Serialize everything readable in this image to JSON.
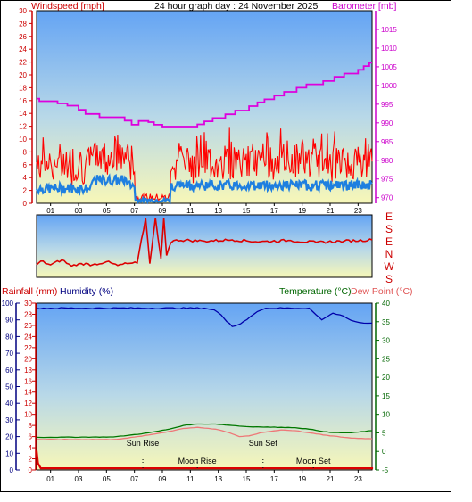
{
  "header": {
    "title": "24 hour graph day : 24 November 2025",
    "wind_label": "Windspeed [mph]",
    "baro_label": "Barometer [mb]",
    "rain_label": "Rainfall (mm)",
    "hum_label": "Humidity (%)",
    "temp_label": "Temperature (°C)",
    "dew_label": "Dew Point (°C)"
  },
  "colors": {
    "wind_gust": "#ff0000",
    "wind_avg": "#1e7fe0",
    "barometer": "#dd00dd",
    "direction": "#dd0000",
    "humidity": "#0000aa",
    "temperature": "#007700",
    "dew_point": "#ee7777",
    "rain": "#dd0000"
  },
  "chart_data": [
    {
      "type": "line",
      "x_ticks": [
        "01",
        "03",
        "05",
        "07",
        "09",
        "11",
        "13",
        "15",
        "17",
        "19",
        "21",
        "23"
      ],
      "xlim": [
        0,
        24
      ],
      "y_left": {
        "ticks": [
          "0",
          "2",
          "4",
          "6",
          "8",
          "10",
          "12",
          "14",
          "16",
          "18",
          "20",
          "22",
          "24",
          "26",
          "28",
          "30"
        ],
        "ylim": [
          0,
          30
        ]
      },
      "y_right": {
        "ticks": [
          "970",
          "975",
          "980",
          "985",
          "990",
          "995",
          "1000",
          "1005",
          "1010",
          "1015"
        ],
        "ylim": [
          968.5,
          1020
        ]
      },
      "series": [
        {
          "key": "barometer",
          "axis": "right",
          "points": [
            [
              0,
              996.5
            ],
            [
              0.2,
              995.8
            ],
            [
              1.5,
              995.2
            ],
            [
              2.2,
              994.6
            ],
            [
              3.0,
              993.5
            ],
            [
              3.5,
              992.4
            ],
            [
              4.5,
              991.5
            ],
            [
              6.3,
              990.6
            ],
            [
              6.8,
              989.5
            ],
            [
              7.3,
              990.5
            ],
            [
              8.0,
              990.2
            ],
            [
              8.4,
              989.5
            ],
            [
              9.0,
              989.0
            ],
            [
              11.5,
              989.6
            ],
            [
              12.0,
              990.4
            ],
            [
              12.6,
              991.3
            ],
            [
              13.5,
              992.3
            ],
            [
              14.2,
              993.3
            ],
            [
              15.2,
              994.5
            ],
            [
              15.8,
              995.5
            ],
            [
              16.3,
              996.3
            ],
            [
              17.0,
              997.3
            ],
            [
              17.7,
              998.3
            ],
            [
              18.6,
              999.4
            ],
            [
              19.3,
              1000.3
            ],
            [
              20.5,
              1001.2
            ],
            [
              21.3,
              1002.3
            ],
            [
              22.0,
              1003.2
            ],
            [
              23.0,
              1004.2
            ],
            [
              23.4,
              1005.2
            ],
            [
              23.8,
              1006.1
            ]
          ]
        },
        {
          "key": "wind_gust",
          "axis": "left"
        },
        {
          "key": "wind_avg",
          "axis": "left"
        }
      ]
    },
    {
      "type": "line",
      "key": "direction",
      "y_ticks": [
        "E",
        "S",
        "E",
        "N",
        "W",
        "S"
      ],
      "xlim": [
        0,
        24
      ],
      "points": [
        [
          0,
          0.2
        ],
        [
          0.3,
          0.26
        ],
        [
          1,
          0.2
        ],
        [
          1.8,
          0.28
        ],
        [
          2.5,
          0.18
        ],
        [
          3.2,
          0.22
        ],
        [
          4,
          0.2
        ],
        [
          5,
          0.25
        ],
        [
          5.8,
          0.19
        ],
        [
          6.5,
          0.22
        ],
        [
          7.2,
          0.23
        ],
        [
          7.8,
          0.95
        ],
        [
          8.1,
          0.22
        ],
        [
          8.5,
          0.95
        ],
        [
          8.9,
          0.3
        ],
        [
          9.1,
          0.95
        ],
        [
          9.3,
          0.35
        ],
        [
          9.6,
          0.55
        ],
        [
          10,
          0.6
        ],
        [
          12,
          0.58
        ],
        [
          14,
          0.6
        ],
        [
          16,
          0.57
        ],
        [
          18,
          0.59
        ],
        [
          20,
          0.56
        ],
        [
          22,
          0.58
        ],
        [
          24,
          0.6
        ]
      ]
    },
    {
      "type": "line",
      "x_ticks": [
        "01",
        "03",
        "05",
        "07",
        "09",
        "11",
        "13",
        "15",
        "17",
        "19",
        "21",
        "23"
      ],
      "xlim": [
        0,
        24
      ],
      "y_rain": {
        "ticks": [
          "0",
          "2",
          "4",
          "6",
          "8",
          "10",
          "12",
          "14",
          "16",
          "18",
          "20",
          "22",
          "24",
          "26",
          "28",
          "30"
        ],
        "ylim": [
          0,
          30
        ]
      },
      "y_hum": {
        "ticks": [
          "0",
          "10",
          "20",
          "30",
          "40",
          "50",
          "60",
          "70",
          "80",
          "90",
          "100"
        ],
        "ylim": [
          0,
          100
        ]
      },
      "y_temp": {
        "ticks": [
          "-5",
          "0",
          "5",
          "10",
          "15",
          "20",
          "25",
          "30",
          "35",
          "40"
        ],
        "ylim": [
          -5,
          40
        ]
      },
      "annotations": [
        {
          "text": "Sun Rise",
          "x": 7.6
        },
        {
          "text": "Moon Rise",
          "x": 11.5
        },
        {
          "text": "Sun Set",
          "x": 16.2
        },
        {
          "text": "Moon Set",
          "x": 19.8
        }
      ],
      "series": [
        {
          "key": "humidity",
          "axis": "hum",
          "points": [
            [
              0,
              97
            ],
            [
              12,
              97
            ],
            [
              12.7,
              96
            ],
            [
              13.2,
              93
            ],
            [
              13.6,
              89
            ],
            [
              14,
              86
            ],
            [
              14.4,
              87
            ],
            [
              14.8,
              89
            ],
            [
              15.3,
              92
            ],
            [
              15.8,
              95
            ],
            [
              16.4,
              97
            ],
            [
              19.5,
              97
            ],
            [
              20,
              93
            ],
            [
              20.4,
              90
            ],
            [
              20.8,
              92
            ],
            [
              21.2,
              94
            ],
            [
              21.7,
              93
            ],
            [
              22.2,
              91
            ],
            [
              22.8,
              89
            ],
            [
              23.4,
              88
            ],
            [
              24,
              88
            ]
          ]
        },
        {
          "key": "temperature",
          "axis": "temp",
          "points": [
            [
              0,
              3.8
            ],
            [
              5.5,
              3.9
            ],
            [
              6.5,
              4.3
            ],
            [
              8,
              5.0
            ],
            [
              9.5,
              6.0
            ],
            [
              10.5,
              7.0
            ],
            [
              11.5,
              7.4
            ],
            [
              12.8,
              7.4
            ],
            [
              14,
              7.0
            ],
            [
              15,
              6.7
            ],
            [
              16,
              6.6
            ],
            [
              17.5,
              6.5
            ],
            [
              18.5,
              6.4
            ],
            [
              19.5,
              6.0
            ],
            [
              21,
              5.1
            ],
            [
              22.5,
              5.0
            ],
            [
              24,
              5.6
            ]
          ]
        },
        {
          "key": "dew_point",
          "axis": "temp",
          "points": [
            [
              0,
              3.2
            ],
            [
              5.5,
              3.2
            ],
            [
              6.5,
              3.6
            ],
            [
              8,
              4.4
            ],
            [
              9.5,
              5.4
            ],
            [
              10.5,
              6.2
            ],
            [
              11.5,
              6.5
            ],
            [
              12.8,
              6.0
            ],
            [
              13.8,
              5.0
            ],
            [
              14.5,
              4.0
            ],
            [
              15.2,
              4.2
            ],
            [
              16,
              5.0
            ],
            [
              17.5,
              5.8
            ],
            [
              18.5,
              5.6
            ],
            [
              19.5,
              5.0
            ],
            [
              21,
              4.2
            ],
            [
              22.5,
              3.6
            ],
            [
              24,
              3.4
            ]
          ]
        },
        {
          "key": "rain",
          "axis": "rain",
          "points": [
            [
              0,
              3.5
            ],
            [
              0.1,
              1.2
            ],
            [
              0.3,
              0.3
            ],
            [
              24,
              0.3
            ],
            [
              24,
              0.1
            ]
          ]
        }
      ]
    }
  ]
}
